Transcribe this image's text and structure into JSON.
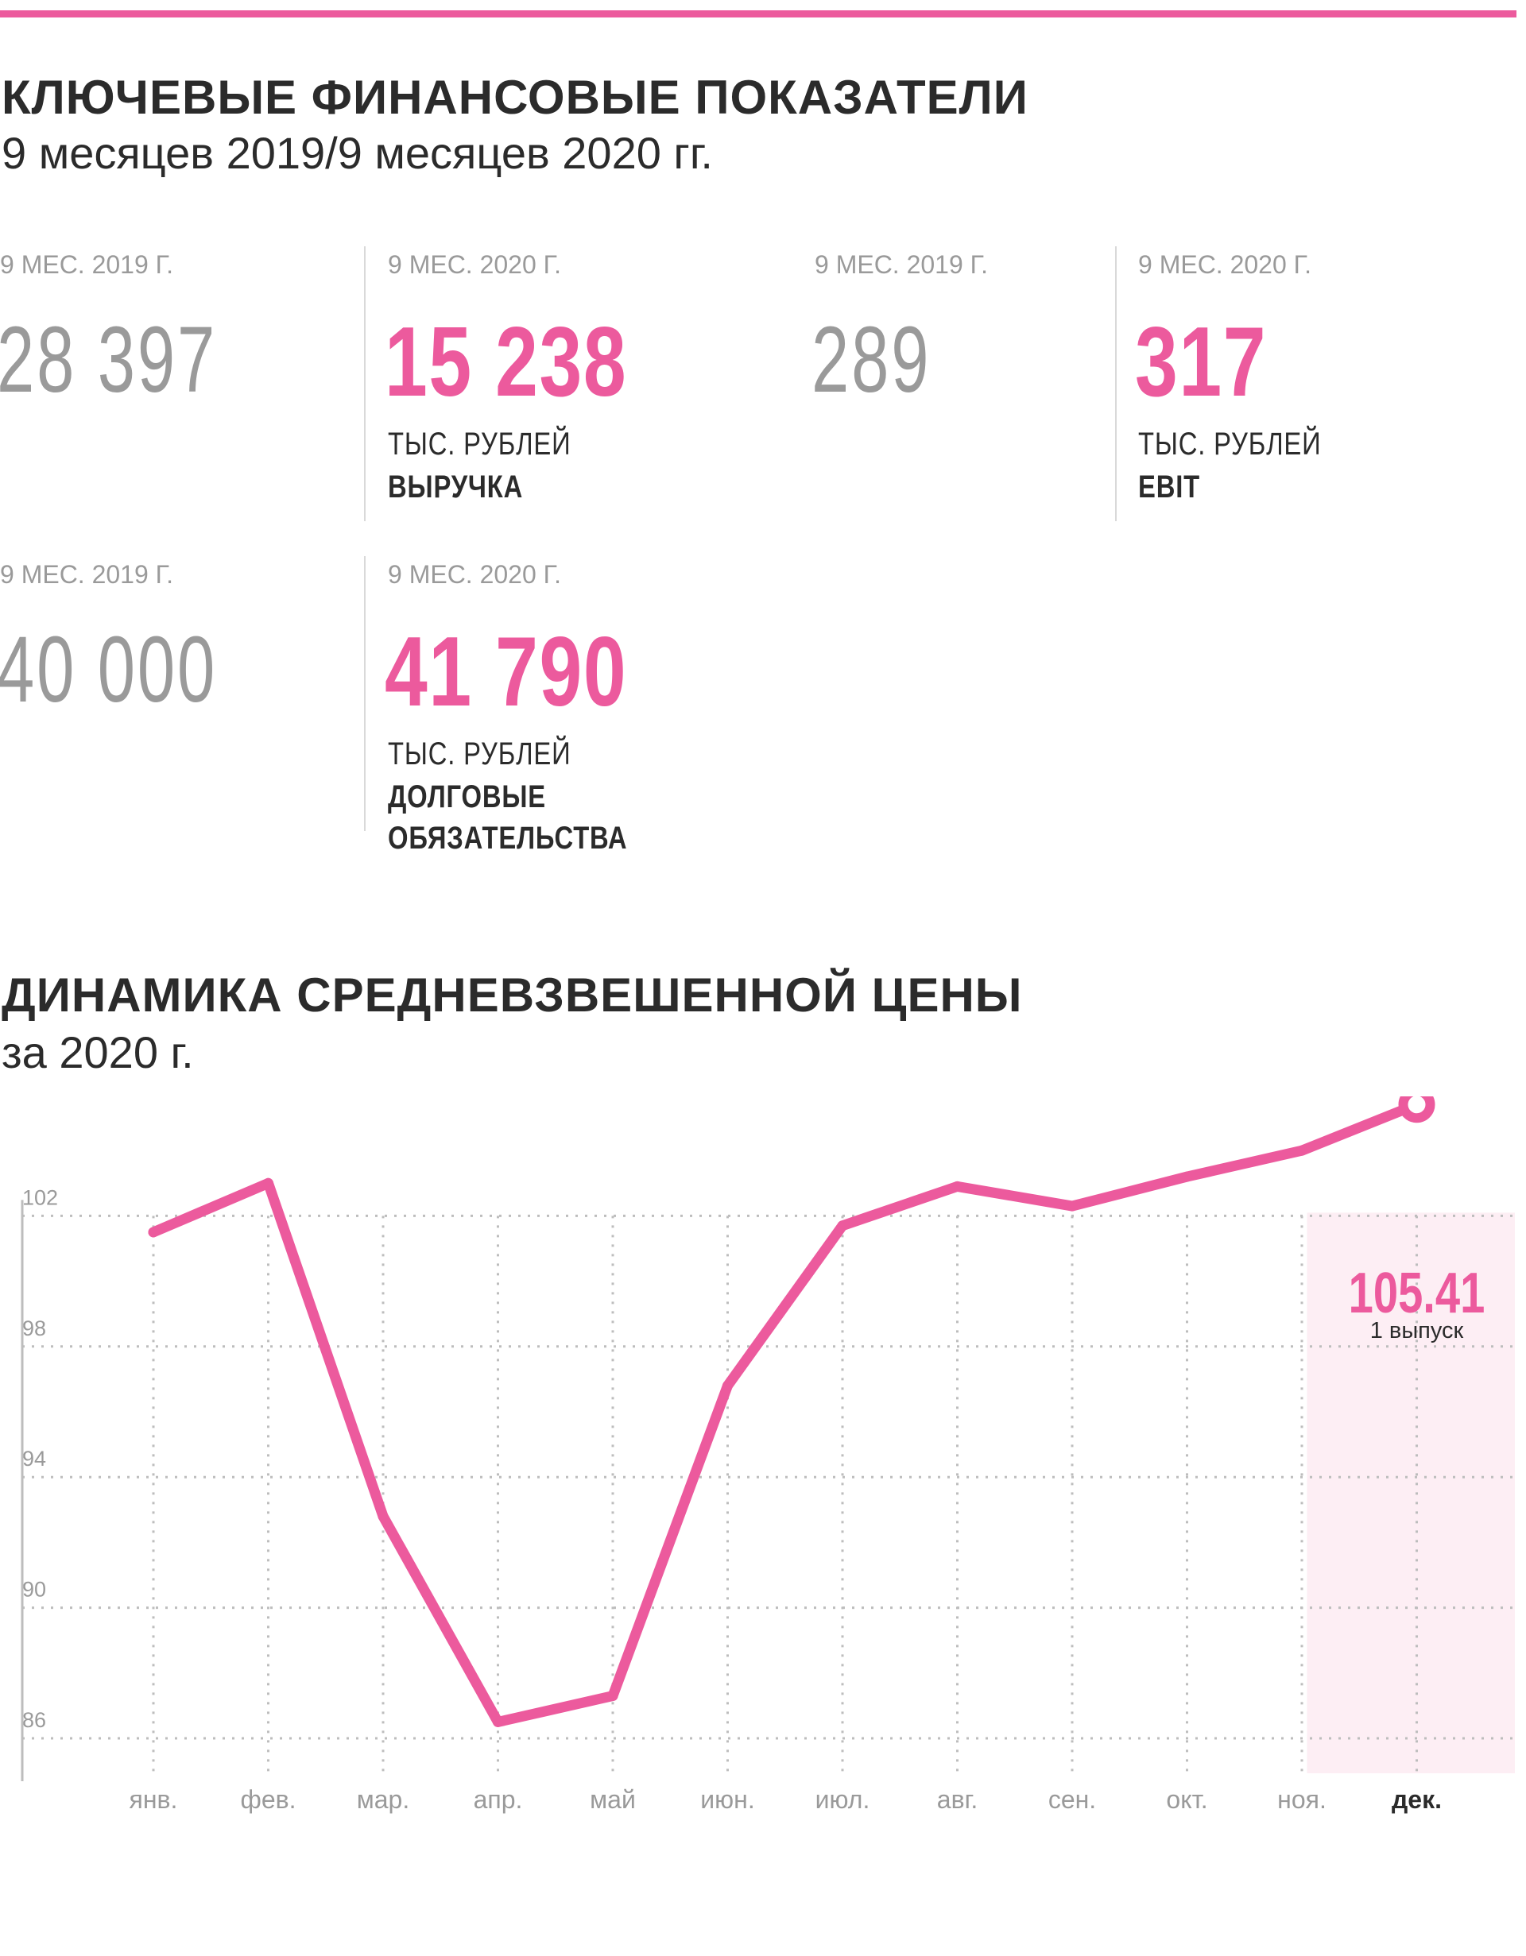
{
  "header": {
    "title": "КЛЮЧЕВЫЕ ФИНАНСОВЫЕ ПОКАЗАТЕЛИ",
    "subtitle": "9 месяцев 2019/9 месяцев 2020 гг."
  },
  "kpis": {
    "revenue": {
      "prev_period": "9 МЕС. 2019 Г.",
      "prev_value": "28 397",
      "cur_period": "9 МЕС. 2020 Г.",
      "cur_value": "15 238",
      "unit": "ТЫС. РУБЛЕЙ",
      "name": "ВЫРУЧКА"
    },
    "ebit": {
      "prev_period": "9 МЕС. 2019 Г.",
      "prev_value": "289",
      "cur_period": "9 МЕС. 2020 Г.",
      "cur_value": "317",
      "unit": "ТЫС. РУБЛЕЙ",
      "name": "EBIT"
    },
    "debt": {
      "prev_period": "9 МЕС. 2019 Г.",
      "prev_value": "40 000",
      "cur_period": "9 МЕС. 2020 Г.",
      "cur_value": "41 790",
      "unit": "ТЫС. РУБЛЕЙ",
      "name_line1": "ДОЛГОВЫЕ",
      "name_line2": "ОБЯЗАТЕЛЬСТВА"
    }
  },
  "chart_section": {
    "title": "ДИНАМИКА СРЕДНЕВЗВЕШЕННОЙ ЦЕНЫ",
    "subtitle": "за 2020 г."
  },
  "colors": {
    "accent": "#ec5a9d",
    "text": "#2b2b2b",
    "muted": "#9a9a9a",
    "grid": "#bdbdbd",
    "highlight": "#fdeef4"
  },
  "chart_data": {
    "type": "line",
    "categories": [
      "янв.",
      "фев.",
      "мар.",
      "апр.",
      "май",
      "июн.",
      "июл.",
      "авг.",
      "сен.",
      "окт.",
      "ноя.",
      "дек."
    ],
    "values": [
      101.5,
      103.0,
      92.8,
      86.5,
      87.3,
      96.8,
      101.7,
      102.9,
      102.3,
      103.2,
      104.0,
      105.41
    ],
    "y_ticks": [
      86,
      90,
      94,
      98,
      102
    ],
    "ylim": [
      85,
      106
    ],
    "grid": true,
    "highlighted_category": "дек.",
    "annotation": {
      "value": "105.41",
      "note": "1 выпуск"
    }
  }
}
